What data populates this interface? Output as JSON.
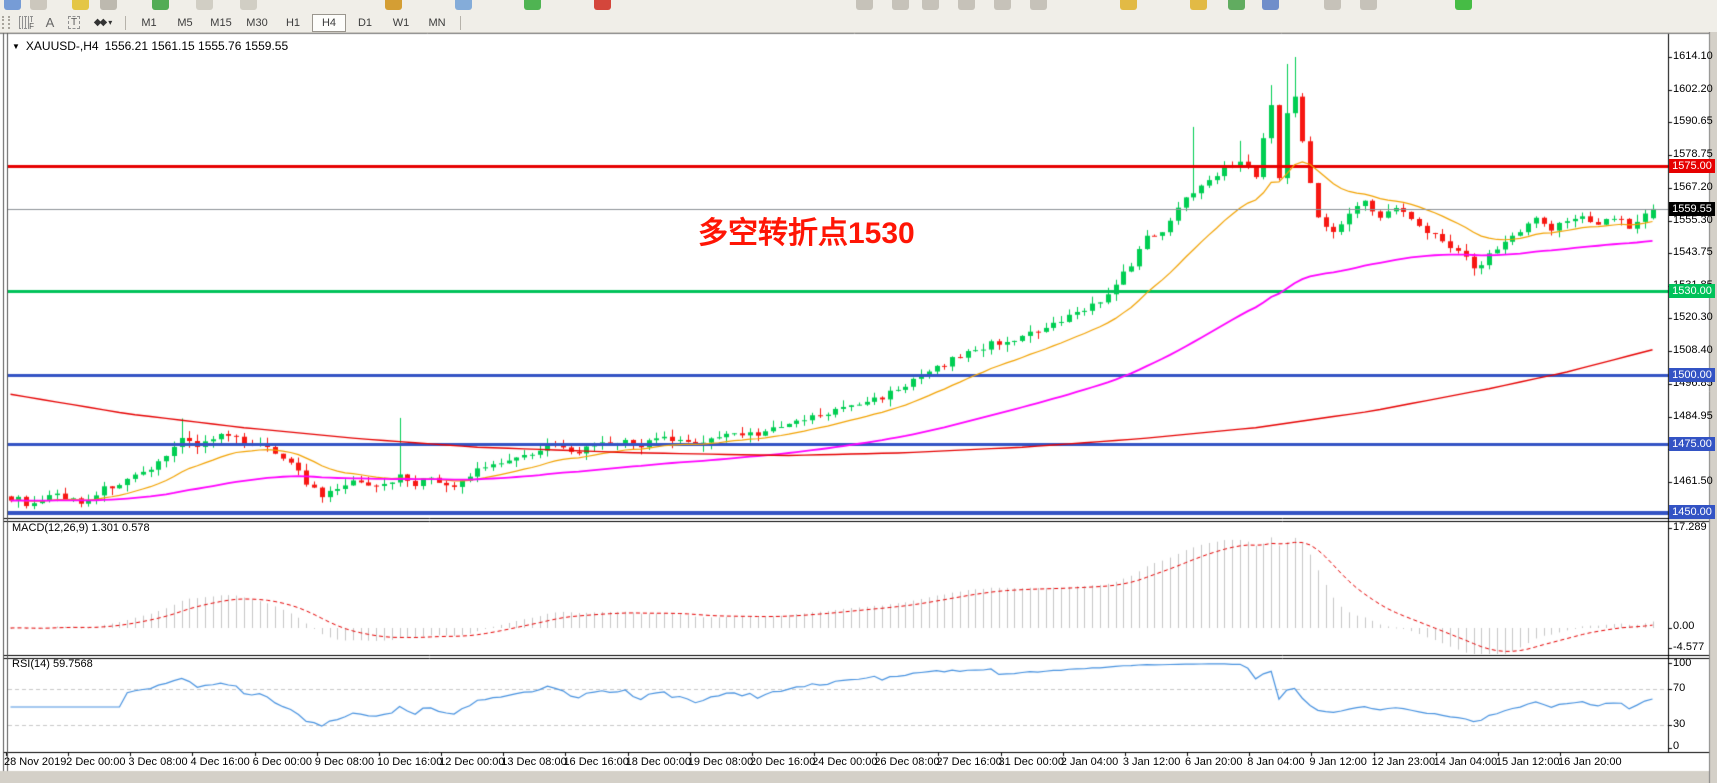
{
  "toolbar": {
    "timeframes": [
      "M1",
      "M5",
      "M15",
      "M30",
      "H1",
      "H4",
      "D1",
      "W1",
      "MN"
    ],
    "active_timeframe": "H4",
    "tools": {
      "fibo_letter": "F",
      "text_letter": "A",
      "textbox_letter": "T",
      "arrows_glyph": "◆◆",
      "caret": "▾"
    }
  },
  "chart": {
    "symbol_title": "XAUUSD-,H4",
    "ohlc": "1556.21 1561.15 1555.76 1559.55",
    "dropdown_glyph": "▼",
    "annotation": {
      "text": "多空转折点1530",
      "color": "#ff1505"
    }
  },
  "price_axis": {
    "ticks": [
      {
        "label": "1614.10",
        "value": 1614.1
      },
      {
        "label": "1602.20",
        "value": 1602.2
      },
      {
        "label": "1590.65",
        "value": 1590.65
      },
      {
        "label": "1578.75",
        "value": 1578.75
      },
      {
        "label": "1567.20",
        "value": 1567.2
      },
      {
        "label": "1555.30",
        "value": 1555.3
      },
      {
        "label": "1543.75",
        "value": 1543.75
      },
      {
        "label": "1531.85",
        "value": 1531.85
      },
      {
        "label": "1520.30",
        "value": 1520.3
      },
      {
        "label": "1508.40",
        "value": 1508.4
      },
      {
        "label": "1496.85",
        "value": 1496.85
      },
      {
        "label": "1484.95",
        "value": 1484.95
      },
      {
        "label": "1473.40",
        "value": 1473.4
      },
      {
        "label": "1461.50",
        "value": 1461.5
      }
    ]
  },
  "levels": [
    {
      "price": 1575.0,
      "label": "1575.00",
      "color": "#e60000",
      "width": 3
    },
    {
      "price": 1530.0,
      "label": "1530.00",
      "color": "#00c25a",
      "width": 3
    },
    {
      "price": 1500.0,
      "label": "1500.00",
      "color": "#3353c4",
      "width": 3
    },
    {
      "price": 1475.0,
      "label": "1475.00",
      "color": "#3353c4",
      "width": 3
    },
    {
      "price": 1450.0,
      "label": "1450.00",
      "color": "#3353c4",
      "width": 4
    }
  ],
  "current_price": {
    "label": "1559.55",
    "value": 1559.55,
    "badge_color": "#000000",
    "line_color": "#8c9196"
  },
  "macd_panel": {
    "label": "MACD(12,26,9) 1.301 0.578",
    "axis_max": "17.289",
    "axis_zero": "0.00",
    "axis_min": "-4.577"
  },
  "rsi_panel": {
    "label": "RSI(14) 59.7568",
    "axis": [
      "100",
      "70",
      "30",
      "0"
    ]
  },
  "time_axis": [
    "28 Nov 2019",
    "2 Dec 00:00",
    "3 Dec 08:00",
    "4 Dec 16:00",
    "6 Dec 00:00",
    "9 Dec 08:00",
    "10 Dec 16:00",
    "12 Dec 00:00",
    "13 Dec 08:00",
    "16 Dec 16:00",
    "18 Dec 00:00",
    "19 Dec 08:00",
    "20 Dec 16:00",
    "24 Dec 00:00",
    "26 Dec 08:00",
    "27 Dec 16:00",
    "31 Dec 00:00",
    "2 Jan 04:00",
    "3 Jan 12:00",
    "6 Jan 20:00",
    "8 Jan 04:00",
    "9 Jan 12:00",
    "12 Jan 23:00",
    "14 Jan 04:00",
    "15 Jan 12:00",
    "16 Jan 20:00"
  ],
  "chart_data": {
    "type": "candlestick",
    "symbol": "XAUUSD",
    "timeframe": "H4",
    "title": "XAUUSD-,H4 1556.21 1561.15 1555.76 1559.55",
    "price_range": [
      1448.6,
      1621.6
    ],
    "candle_count": 212,
    "close_anchors": [
      [
        0,
        1456
      ],
      [
        3,
        1453
      ],
      [
        6,
        1457
      ],
      [
        9,
        1454
      ],
      [
        12,
        1459
      ],
      [
        15,
        1462
      ],
      [
        18,
        1465
      ],
      [
        20,
        1472
      ],
      [
        22,
        1477
      ],
      [
        24,
        1475
      ],
      [
        27,
        1478
      ],
      [
        30,
        1476
      ],
      [
        33,
        1474
      ],
      [
        36,
        1469
      ],
      [
        38,
        1461
      ],
      [
        40,
        1456
      ],
      [
        42,
        1459
      ],
      [
        45,
        1462
      ],
      [
        48,
        1460
      ],
      [
        50,
        1464
      ],
      [
        52,
        1461
      ],
      [
        54,
        1463
      ],
      [
        57,
        1459
      ],
      [
        60,
        1466
      ],
      [
        63,
        1469
      ],
      [
        66,
        1471
      ],
      [
        69,
        1475
      ],
      [
        72,
        1472
      ],
      [
        75,
        1474
      ],
      [
        78,
        1476
      ],
      [
        81,
        1475
      ],
      [
        84,
        1477
      ],
      [
        87,
        1475
      ],
      [
        90,
        1477
      ],
      [
        93,
        1479
      ],
      [
        96,
        1479
      ],
      [
        99,
        1481
      ],
      [
        102,
        1484
      ],
      [
        105,
        1486
      ],
      [
        108,
        1489
      ],
      [
        111,
        1491
      ],
      [
        114,
        1495
      ],
      [
        117,
        1499
      ],
      [
        120,
        1504
      ],
      [
        123,
        1508
      ],
      [
        126,
        1511
      ],
      [
        129,
        1513
      ],
      [
        132,
        1515
      ],
      [
        135,
        1519
      ],
      [
        138,
        1524
      ],
      [
        141,
        1528
      ],
      [
        144,
        1540
      ],
      [
        146,
        1549
      ],
      [
        148,
        1552
      ],
      [
        150,
        1560
      ],
      [
        152,
        1566
      ],
      [
        154,
        1571
      ],
      [
        156,
        1574
      ],
      [
        158,
        1577
      ],
      [
        160,
        1572
      ],
      [
        161,
        1585
      ],
      [
        162,
        1597
      ],
      [
        163,
        1570
      ],
      [
        164,
        1594
      ],
      [
        165,
        1601
      ],
      [
        166,
        1585
      ],
      [
        167,
        1568
      ],
      [
        168,
        1556
      ],
      [
        170,
        1552
      ],
      [
        172,
        1558
      ],
      [
        174,
        1562
      ],
      [
        176,
        1556
      ],
      [
        178,
        1560
      ],
      [
        180,
        1557
      ],
      [
        182,
        1552
      ],
      [
        184,
        1548
      ],
      [
        186,
        1545
      ],
      [
        188,
        1538
      ],
      [
        190,
        1543
      ],
      [
        192,
        1548
      ],
      [
        194,
        1552
      ],
      [
        196,
        1556
      ],
      [
        198,
        1552
      ],
      [
        200,
        1555
      ],
      [
        202,
        1558
      ],
      [
        204,
        1554
      ],
      [
        206,
        1557
      ],
      [
        208,
        1553
      ],
      [
        210,
        1557
      ],
      [
        211,
        1559.55
      ]
    ],
    "wick_overrides": [
      {
        "i": 22,
        "high": 1484.3
      },
      {
        "i": 50,
        "high": 1484.5
      },
      {
        "i": 152,
        "high": 1589.0
      },
      {
        "i": 158,
        "high": 1584.0
      },
      {
        "i": 162,
        "high": 1604.0
      },
      {
        "i": 164,
        "high": 1611.6
      },
      {
        "i": 165,
        "high": 1614.1
      },
      {
        "i": 188,
        "low": 1535.6
      }
    ],
    "current_candle": {
      "open": 1556.21,
      "high": 1561.15,
      "low": 1555.76,
      "close": 1559.55
    },
    "moving_averages": [
      {
        "name": "fast-ma",
        "type": "ema",
        "period": 16,
        "color": "#f2a200",
        "width": 1.2
      },
      {
        "name": "slow-ma",
        "type": "ema",
        "period": 70,
        "color": "#ff00ff",
        "width": 1.8
      },
      {
        "name": "long-ma",
        "type": "anchors",
        "color": "#e60000",
        "width": 1.4,
        "points": [
          [
            0,
            1493
          ],
          [
            15,
            1486
          ],
          [
            30,
            1481
          ],
          [
            45,
            1477
          ],
          [
            60,
            1474
          ],
          [
            80,
            1472
          ],
          [
            100,
            1471
          ],
          [
            115,
            1472
          ],
          [
            130,
            1474
          ],
          [
            145,
            1477
          ],
          [
            160,
            1481
          ],
          [
            175,
            1487
          ],
          [
            190,
            1495
          ],
          [
            200,
            1501
          ],
          [
            211,
            1509
          ]
        ]
      }
    ],
    "macd": {
      "fast": 12,
      "slow": 26,
      "signal": 9,
      "value": 1.301,
      "signal_value": 0.578,
      "histogram_color": "#c6c6c6",
      "signal_color": "#e60000",
      "axis_range": [
        -4.577,
        17.289
      ]
    },
    "rsi": {
      "period": 14,
      "value": 59.7568,
      "color": "#4792e0",
      "levels": [
        70,
        30
      ],
      "axis_range": [
        0,
        100
      ],
      "level_color": "#c8c8c8"
    },
    "colors": {
      "up": "#00ce52",
      "down": "#f71712",
      "background": "#ffffff"
    }
  }
}
